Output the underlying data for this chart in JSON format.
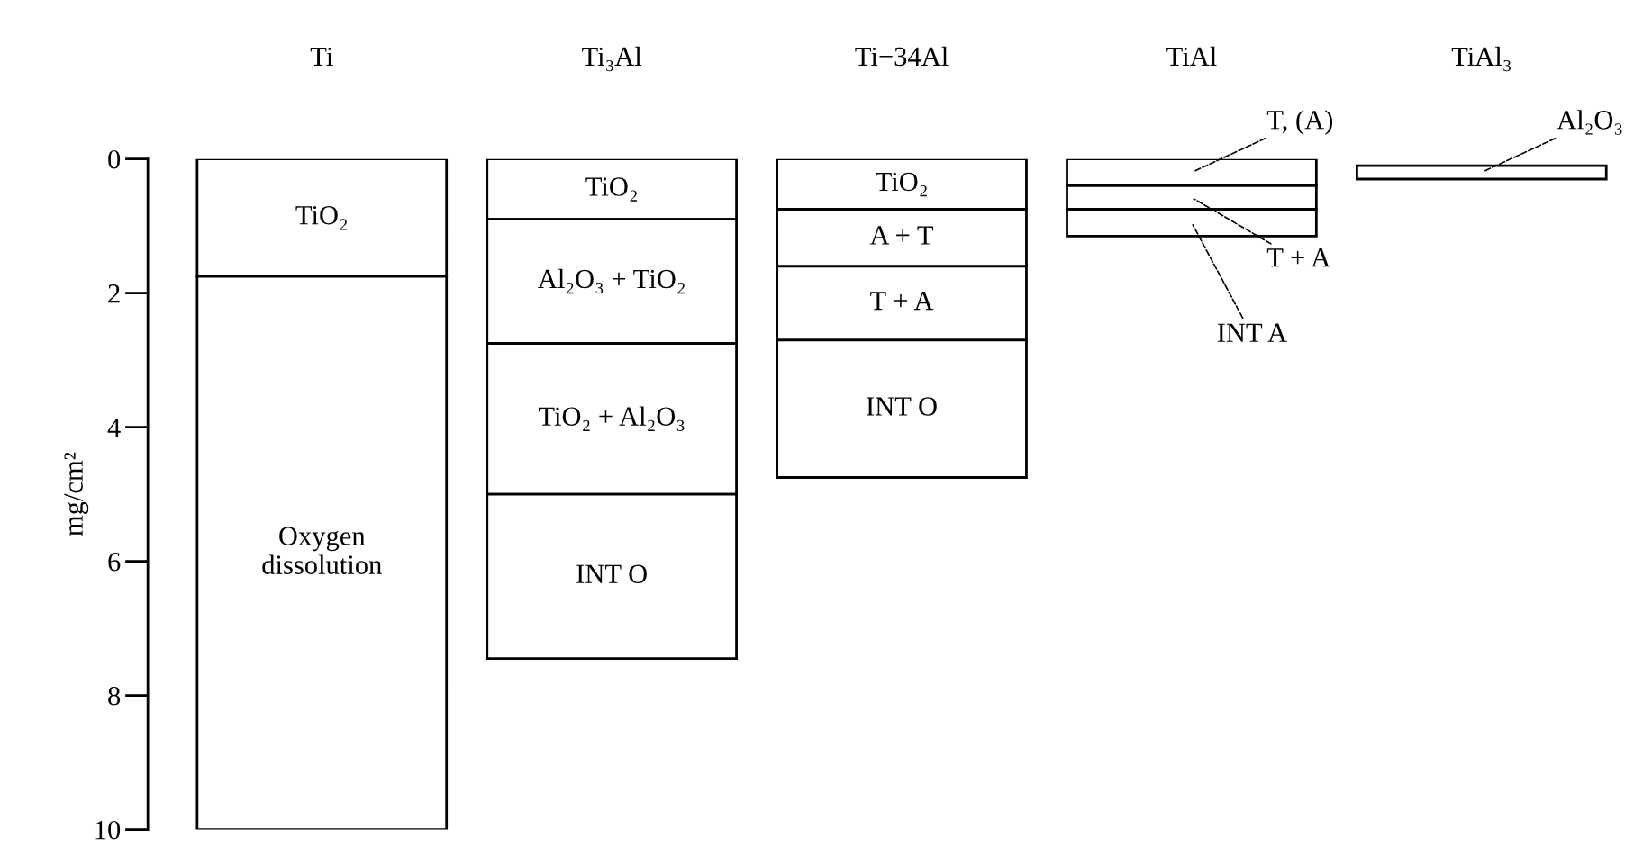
{
  "chart_data": {
    "type": "bar",
    "ylabel": "mg/cm²",
    "categories": [
      "Ti",
      "Ti₃Al",
      "Ti−34Al",
      "TiAl",
      "TiAl₃"
    ],
    "series": [
      {
        "color": "#ffffff",
        "base": [
          0,
          0,
          0,
          0,
          0.1
        ],
        "values": [
          1.75,
          0.9,
          0.75,
          0.4,
          0.2
        ],
        "value_labels": [
          "TiO₂",
          "TiO₂",
          "TiO₂",
          "T, (A)",
          "Al₂O₃"
        ]
      },
      {
        "color": "#ffffff",
        "base": [
          1.75,
          0.9,
          0.75,
          0.4,
          null
        ],
        "values": [
          8.25,
          1.85,
          0.85,
          0.35,
          null
        ],
        "value_labels": [
          "Oxygen\ndissolution",
          "Al₂O₃ + TiO₂",
          "A + T",
          "T + A",
          null
        ]
      },
      {
        "color": "#ffffff",
        "base": [
          null,
          2.75,
          1.6,
          0.75,
          null
        ],
        "values": [
          null,
          2.25,
          1.1,
          0.4,
          null
        ],
        "value_labels": [
          null,
          "TiO₂ + Al₂O₃",
          "T + A",
          "INT A",
          null
        ]
      },
      {
        "color": "#ffffff",
        "base": [
          null,
          5.0,
          2.7,
          null,
          null
        ],
        "values": [
          null,
          2.45,
          2.05,
          null,
          null
        ],
        "value_labels": [
          null,
          "INT O",
          "INT O",
          null,
          null
        ]
      }
    ],
    "ylim": [
      10,
      0
    ],
    "yticks": [
      0,
      2,
      4,
      6,
      8,
      10
    ],
    "grid": false
  }
}
